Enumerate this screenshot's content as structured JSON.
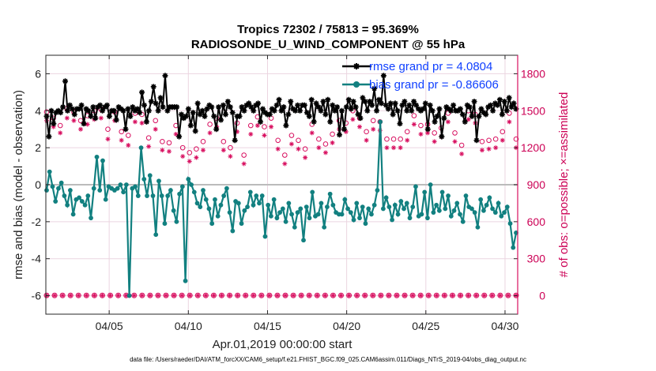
{
  "chart_data": {
    "type": "line",
    "title": "Tropics 72302 / 75813 = 95.369%",
    "subtitle": "RADIOSONDE_U_WIND_COMPONENT @ 55 hPa",
    "xlabel": "Apr.01,2019 00:00:00 start",
    "ylabel": "rmse and bias (model - observation)",
    "y2label": "# of obs: o=possible; ×=assimilated",
    "xlim": [
      1,
      30.8
    ],
    "ylim": [
      -7,
      7
    ],
    "y2lim": [
      -150,
      1950
    ],
    "x_ticks": [
      5,
      10,
      15,
      20,
      25,
      30
    ],
    "x_tick_labels": [
      "04/05",
      "04/10",
      "04/15",
      "04/20",
      "04/25",
      "04/30"
    ],
    "y_ticks": [
      -6,
      -4,
      -2,
      0,
      2,
      4,
      6
    ],
    "y_tick_labels": [
      "-6",
      "-4",
      "-2",
      "0",
      "2",
      "4",
      "6"
    ],
    "y2_ticks": [
      0,
      300,
      600,
      900,
      1200,
      1500,
      1800
    ],
    "y2_tick_labels": [
      "0",
      "300",
      "600",
      "900",
      "1200",
      "1500",
      "1800"
    ],
    "legend_position": "top-right",
    "zero_line": 0,
    "colors": {
      "rmse": "#000000",
      "bias": "#128080",
      "obs": "#d81060",
      "zero": "#bbbbbb",
      "grid": "#ebd5e0"
    },
    "series": [
      {
        "name": "rmse",
        "legend": "rmse grand pr = 4.0804",
        "values": [
          3.7,
          2.6,
          4.0,
          3.3,
          3.9,
          4.0,
          3.9,
          4.2,
          5.6,
          4.0,
          4.3,
          4.1,
          3.8,
          4.1,
          4.1,
          4.3,
          3.3,
          4.1,
          4.0,
          3.7,
          4.2,
          3.6,
          4.2,
          4.3,
          4.0,
          4.2,
          4.3,
          3.7,
          4.0,
          4.0,
          3.5,
          4.2,
          4.1,
          4.0,
          3.0,
          4.1,
          3.7,
          4.2,
          4.0,
          4.1,
          3.9,
          5.0,
          4.3,
          3.4,
          4.0,
          4.5,
          5.3,
          4.4,
          4.0,
          4.7,
          4.2,
          5.9,
          4.0,
          4.2,
          4.2,
          4.2,
          4.2,
          2.6,
          3.8,
          3.6,
          3.7,
          4.1,
          3.2,
          3.9,
          2.9,
          4.4,
          3.8,
          4.0,
          3.7,
          4.1,
          4.3,
          4.2,
          3.7,
          3.0,
          4.2,
          3.5,
          4.3,
          3.8,
          4.5,
          4.2,
          3.9,
          2.4,
          3.7,
          3.7,
          4.2,
          4.0,
          4.3,
          4.4,
          4.2,
          4.0,
          4.3,
          4.4,
          3.4,
          4.1,
          3.9,
          3.8,
          3.8,
          4.1,
          4.0,
          4.3,
          4.6,
          4.0,
          4.2,
          3.2,
          3.8,
          4.5,
          4.1,
          4.0,
          4.3,
          4.0,
          4.3,
          4.3,
          3.9,
          3.7,
          4.6,
          3.4,
          4.4,
          4.2,
          4.0,
          4.5,
          3.8,
          4.6,
          3.4,
          4.3,
          4.0,
          4.2,
          2.7,
          4.0,
          3.0,
          4.2,
          4.6,
          4.1,
          4.5,
          4.2,
          3.8,
          3.6,
          4.7,
          4.5,
          4.0,
          4.5,
          4.3,
          5.2,
          4.0,
          4.6,
          4.4,
          5.9,
          4.3,
          4.1,
          4.4,
          3.8,
          4.4,
          4.0,
          3.3,
          4.3,
          4.5,
          4.0,
          4.3,
          4.0,
          4.5,
          4.3,
          4.1,
          4.0,
          4.1,
          4.4,
          3.0,
          4.3,
          4.0,
          3.4,
          3.7,
          4.1,
          2.6,
          3.6,
          4.2,
          4.1,
          4.0,
          4.3,
          4.0,
          4.0,
          4.1,
          3.8,
          3.4,
          4.3,
          4.2,
          3.7,
          4.5,
          2.4,
          3.7,
          4.1,
          3.9,
          3.8,
          4.2,
          4.3,
          4.0,
          4.4,
          4.3,
          4.6,
          3.8,
          4.5,
          4.0,
          4.7,
          4.2,
          4.4,
          4.1
        ]
      },
      {
        "name": "bias",
        "legend": "bias grand pr = -0.86606",
        "values": [
          -0.3,
          0.7,
          -0.1,
          -0.9,
          -0.2,
          0.1,
          -0.6,
          -1.1,
          -0.3,
          -1.6,
          -0.8,
          -0.7,
          -0.9,
          -1.1,
          -0.6,
          -1.8,
          -0.2,
          1.5,
          -0.3,
          1.3,
          -0.8,
          -0.1,
          -0.2,
          -0.3,
          -0.2,
          0.0,
          -0.4,
          0.0,
          -6.0,
          -0.2,
          -0.1,
          -0.6,
          2.0,
          0.3,
          -0.6,
          0.5,
          -0.6,
          -2.7,
          0.2,
          -0.6,
          -2.1,
          -0.6,
          -0.3,
          -1.4,
          -2.0,
          -0.5,
          -0.1,
          -5.2,
          0.3,
          0.0,
          -0.4,
          -1.0,
          -1.2,
          -0.3,
          -0.8,
          -1.3,
          -2.1,
          -0.8,
          -1.7,
          -1.1,
          -0.6,
          -0.2,
          -1.5,
          -2.5,
          -0.9,
          -1.0,
          -2.1,
          -1.4,
          -1.2,
          -0.4,
          -1.1,
          -0.6,
          -1.0,
          -0.6,
          -2.8,
          -1.1,
          -1.7,
          -0.8,
          -1.8,
          -1.5,
          -1.3,
          -2.0,
          -1.0,
          -1.6,
          -2.3,
          -1.5,
          -1.3,
          -3.0,
          -1.2,
          -1.8,
          -0.4,
          -1.7,
          -1.6,
          -1.0,
          -2.3,
          -1.2,
          -0.5,
          -1.1,
          -1.5,
          -1.6,
          -1.6,
          -0.8,
          -1.3,
          -1.5,
          -1.9,
          -1.0,
          -1.8,
          -1.2,
          -2.1,
          -1.3,
          -1.6,
          -1.1,
          -0.3,
          3.4,
          -1.3,
          -0.7,
          -1.2,
          -1.9,
          -1.1,
          -1.6,
          -0.9,
          -1.3,
          -1.0,
          -1.8,
          -1.2,
          -0.1,
          -1.7,
          -1.6,
          -0.4,
          -1.8,
          0.0,
          -1.5,
          -1.1,
          -1.4,
          -0.4,
          -1.3,
          -0.6,
          -1.7,
          -1.4,
          -1.0,
          -1.6,
          -2.0,
          -0.6,
          -1.2,
          -1.3,
          -1.5,
          -2.3,
          -0.8,
          -1.4,
          -1.1,
          -0.7,
          -1.3,
          -1.5,
          -1.0,
          -1.7,
          -1.5,
          -1.2,
          -2.1,
          -3.4,
          -2.6
        ]
      },
      {
        "name": "obs_possible",
        "marker": "circle",
        "values": [
          1490,
          1440,
          1380,
          1520,
          1490,
          1420,
          1460,
          1500,
          1510,
          1350,
          1490,
          1330,
          1300,
          1480,
          1470,
          1280,
          1420,
          1250,
          1240,
          1380,
          1200,
          1160,
          1190,
          1250,
          1390,
          1440,
          1250,
          1200,
          1400,
          1140,
          1380,
          1450,
          1370,
          1440,
          1260,
          1140,
          1300,
          1260,
          1190,
          1390,
          1270,
          1230,
          1310,
          1420,
          1400,
          1500,
          1440,
          1330,
          1420,
          1410,
          1270,
          1270,
          1270,
          1330,
          1460,
          1380,
          1390,
          1320,
          1360,
          1480,
          1320,
          1220,
          1500,
          1470,
          1250,
          1260,
          1270,
          1330,
          1480,
          1270
        ]
      },
      {
        "name": "obs_assimilated",
        "marker": "asterisk",
        "values": [
          1420,
          1370,
          1320,
          1440,
          1420,
          1350,
          1390,
          1430,
          1440,
          1270,
          1420,
          1260,
          1220,
          1410,
          1400,
          1210,
          1350,
          1180,
          1170,
          1310,
          1130,
          1090,
          1120,
          1180,
          1320,
          1370,
          1180,
          1130,
          1330,
          1070,
          1310,
          1380,
          1300,
          1370,
          1190,
          1070,
          1230,
          1190,
          1120,
          1320,
          1200,
          1160,
          1240,
          1350,
          1330,
          1430,
          1370,
          1260,
          1350,
          1340,
          1200,
          1200,
          1200,
          1260,
          1390,
          1310,
          1320,
          1250,
          1290,
          1410,
          1250,
          1150,
          1430,
          1400,
          1180,
          1190,
          1200,
          1260,
          1410,
          1200
        ]
      }
    ]
  },
  "footer": {
    "data_file": "data file: /Users/raeder/DAI/ATM_forcXX/CAM6_setup/f.e21.FHIST_BGC.f09_025.CAM6assim.011/Diags_NTrS_2019-04/obs_diag_output.nc"
  }
}
